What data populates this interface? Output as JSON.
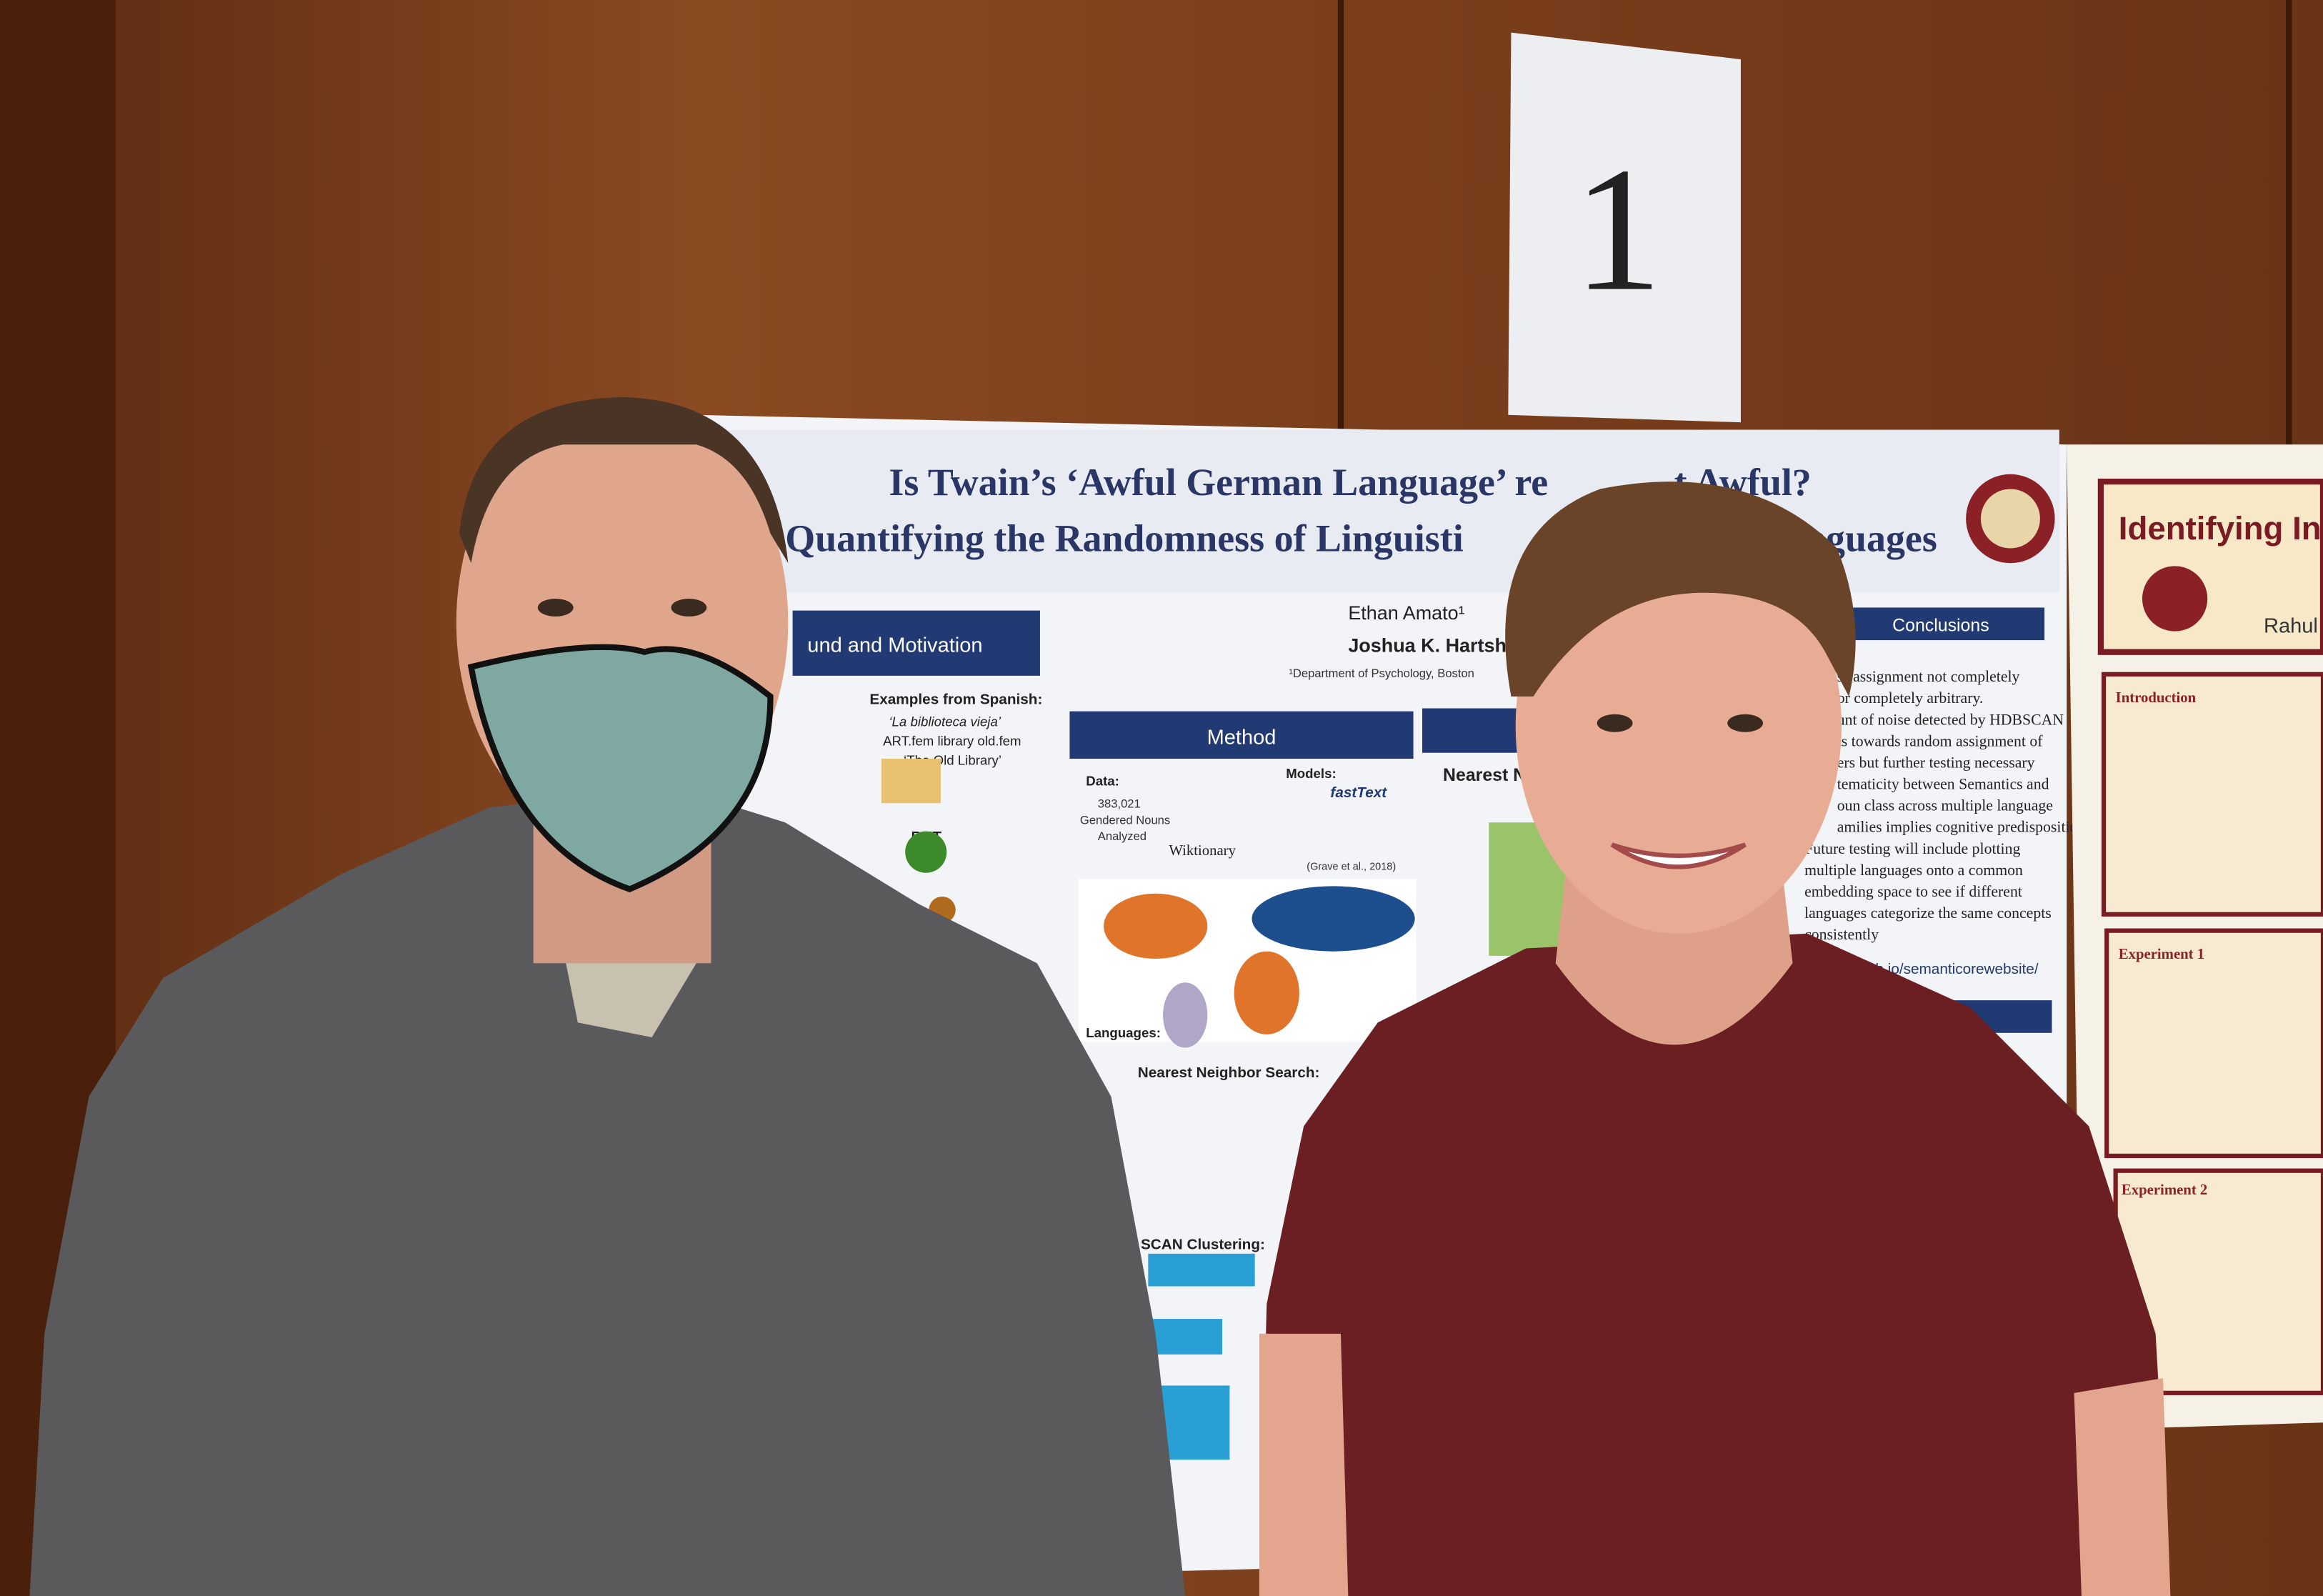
{
  "sign": "1",
  "poster": {
    "title": [
      "Is Twain’s ‘Awful German Language’ re",
      "t Awful?"
    ],
    "subtitle": [
      "Quantifying the Randomness of Linguisti",
      "anguages"
    ],
    "authors": [
      "Ethan Amato¹",
      "Joshua K. Hartshorne"
    ],
    "affiliation": "¹Department of Psychology, Boston",
    "sections": {
      "background": "und and Motivation",
      "method": "Method",
      "nearest": "Nearest N",
      "conclusions": "Conclusions"
    },
    "examples": {
      "heading": "Examples from Spanish:",
      "phrase": "‘La biblioteca vieja’",
      "gloss": "ART.fem library old.fem",
      "translation": "‘The Old Library’",
      "but": "BUT"
    },
    "method": {
      "data": "Data:",
      "count": "383,021",
      "nouns": "Gendered Nouns",
      "analyzed": "Analyzed",
      "wiktionary": "Wiktionary",
      "models": "Models:",
      "fasttext": "fastText",
      "cite": "(Grave et al., 2018)",
      "languages": "Languages:",
      "search": "Nearest Neighbor Search:",
      "clustering": "SCAN Clustering:"
    },
    "conclusions": [
      "ss assignment not completely",
      "or completely arbitrary.",
      "unt of noise detected by HDBSCAN",
      "ts towards random assignment of",
      "ers but further testing necessary",
      "tematicity between Semantics and",
      "oun class across multiple language",
      "amilies implies cognitive predisposition",
      "Future testing will include plotting",
      "multiple languages onto a common",
      "embedding space to see if different",
      "languages categorize the same concepts",
      "consistently"
    ],
    "link": "thub.io/semanticorewebsite/"
  },
  "right_poster": {
    "title": "Identifying In",
    "author": "Rahul A",
    "intro": "Introduction",
    "exp1": "Experiment 1",
    "exp2": "Experiment 2"
  }
}
